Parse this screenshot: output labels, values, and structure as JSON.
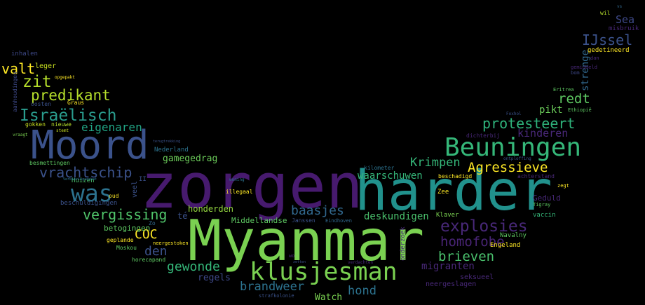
{
  "words": [
    {
      "text": "zorgen",
      "color": "#471a6e"
    },
    {
      "text": "harder",
      "color": "#21918c"
    },
    {
      "text": "Myanmar",
      "color": "#7ad151"
    },
    {
      "text": "Moord",
      "color": "#3b528b"
    },
    {
      "text": "Beuningen",
      "color": "#35b779"
    },
    {
      "text": "klusjesman",
      "color": "#7ad151"
    },
    {
      "text": "was",
      "color": "#2c728e"
    },
    {
      "text": "explosies",
      "color": "#482878"
    },
    {
      "text": "Israëlisch",
      "color": "#2a9d8e"
    },
    {
      "text": "zit",
      "color": "#b5de2b"
    },
    {
      "text": "predikant",
      "color": "#b5de2b"
    },
    {
      "text": "valt",
      "color": "#fde725"
    },
    {
      "text": "vergissing",
      "color": "#50c46a"
    },
    {
      "text": "vrachtschip",
      "color": "#3b528b"
    },
    {
      "text": "protesteert",
      "color": "#2fb47c"
    },
    {
      "text": "Agressieve",
      "color": "#fde725"
    },
    {
      "text": "homofobe",
      "color": "#482475"
    },
    {
      "text": "brieven",
      "color": "#4ac16d"
    },
    {
      "text": "IJssel",
      "color": "#3b528b"
    },
    {
      "text": "redt",
      "color": "#5ec962"
    },
    {
      "text": "Krimpen",
      "color": "#35b779"
    },
    {
      "text": "baasjes",
      "color": "#31688e"
    },
    {
      "text": "den",
      "color": "#3b528b"
    },
    {
      "text": "gewonde",
      "color": "#35b779"
    },
    {
      "text": "eigenaren",
      "color": "#21a585"
    },
    {
      "text": "brandweer",
      "color": "#2c728e"
    },
    {
      "text": "hond",
      "color": "#2c728e"
    },
    {
      "text": "kinderen",
      "color": "#482878"
    },
    {
      "text": "COC",
      "color": "#fde725"
    },
    {
      "text": "deskundigen",
      "color": "#4ac16d"
    },
    {
      "text": "waarschuwen",
      "color": "#35b779"
    },
    {
      "text": "migranten",
      "color": "#482878"
    },
    {
      "text": "pikt",
      "color": "#6ccd5a"
    },
    {
      "text": "strenge",
      "color": "#31688e"
    },
    {
      "text": "Sea",
      "color": "#3e4989"
    },
    {
      "text": "gamegedrag",
      "color": "#6ccd5a"
    },
    {
      "text": "regels",
      "color": "#3e4989"
    },
    {
      "text": "honderden",
      "color": "#95d840"
    },
    {
      "text": "Watch",
      "color": "#7ad151"
    },
    {
      "text": "Geduld",
      "color": "#482878"
    },
    {
      "text": "betogingen",
      "color": "#5ec962"
    },
    {
      "text": "Middellandse",
      "color": "#5ec962"
    },
    {
      "text": "seksueel",
      "color": "#482878"
    },
    {
      "text": "neergeslagen",
      "color": "#482878"
    },
    {
      "text": "leger",
      "color": "#c8e020"
    },
    {
      "text": "inhalen",
      "color": "#3e4989"
    },
    {
      "text": "gedetineerd",
      "color": "#fde725"
    },
    {
      "text": "misbruik",
      "color": "#482878"
    },
    {
      "text": "vaccin",
      "color": "#35b779"
    },
    {
      "text": "Navalny",
      "color": "#5ec962"
    },
    {
      "text": "Engeland",
      "color": "#fde725"
    },
    {
      "text": "Klaver",
      "color": "#7ad151"
    },
    {
      "text": "Nederland",
      "color": "#2c728e"
    },
    {
      "text": "Huizen",
      "color": "#4ac16d"
    },
    {
      "text": "beschuldigingen",
      "color": "#3b528b"
    },
    {
      "text": "besmettingen",
      "color": "#5ec962"
    },
    {
      "text": "nieuwe",
      "color": "#b5de2b"
    },
    {
      "text": "gokken",
      "color": "#c8e020"
    },
    {
      "text": "oosten",
      "color": "#3b528b"
    },
    {
      "text": "Graus",
      "color": "#fde725"
    },
    {
      "text": "Moskou",
      "color": "#5ec962"
    },
    {
      "text": "horecapand",
      "color": "#5ec962"
    },
    {
      "text": "geplande",
      "color": "#fde725"
    },
    {
      "text": "neergestoken",
      "color": "#fde725"
    },
    {
      "text": "dichterbij",
      "color": "#482878"
    },
    {
      "text": "achterstand",
      "color": "#482878"
    },
    {
      "text": "beschadigd",
      "color": "#fde725"
    },
    {
      "text": "kilometer",
      "color": "#2c728e"
    },
    {
      "text": "illegaal",
      "color": "#fde725"
    },
    {
      "text": "Janssen",
      "color": "#3b528b"
    },
    {
      "text": "Eindhoven",
      "color": "#31688e"
    },
    {
      "text": "Zee",
      "color": "#fde725"
    },
    {
      "text": "zegt",
      "color": "#fde725"
    },
    {
      "text": "Tigray",
      "color": "#5ec962"
    },
    {
      "text": "Eritrea",
      "color": "#5ec962"
    },
    {
      "text": "Ethiopië",
      "color": "#5ec962"
    },
    {
      "text": "gemiddeld",
      "color": "#482878"
    },
    {
      "text": "bom",
      "color": "#3e4989"
    },
    {
      "text": "dan",
      "color": "#482878"
    },
    {
      "text": "wil",
      "color": "#b5de2b"
    },
    {
      "text": "vs",
      "color": "#31688e"
    },
    {
      "text": "ontploffing",
      "color": "#3b528b"
    },
    {
      "text": "Foxhol",
      "color": "#3b528b"
    },
    {
      "text": "terugtrekking",
      "color": "#3b528b"
    },
    {
      "text": "Verkiezingsdebat",
      "color": "#2c728e"
    },
    {
      "text": "opgepakt",
      "color": "#fde725"
    },
    {
      "text": "aanhoudingen",
      "color": "#3e4989"
    },
    {
      "text": "vraagt",
      "color": "#7ad151"
    },
    {
      "text": "stemt",
      "color": "#c8e020"
    },
    {
      "text": "veel",
      "color": "#3b528b"
    },
    {
      "text": "té",
      "color": "#3b528b"
    },
    {
      "text": "II",
      "color": "#3b528b"
    },
    {
      "text": "oud",
      "color": "#fde725"
    },
    {
      "text": "Zo",
      "color": "#31688e"
    },
    {
      "text": "onderzoek",
      "color": "#482878"
    },
    {
      "text": "verdachten",
      "color": "#482878"
    },
    {
      "text": "wo",
      "color": "#482878"
    },
    {
      "text": "woning",
      "color": "#2c728e"
    },
    {
      "text": "strafkolonie",
      "color": "#3b528b"
    },
    {
      "text": "zetten",
      "color": "#3b528b"
    }
  ]
}
